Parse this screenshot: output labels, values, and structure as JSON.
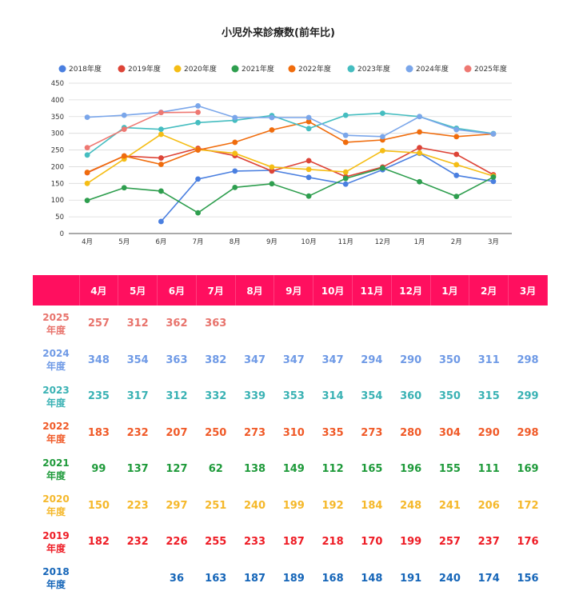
{
  "chart_data": {
    "type": "line",
    "title": "小児外来診療数(前年比)",
    "categories": [
      "4月",
      "5月",
      "6月",
      "7月",
      "8月",
      "9月",
      "10月",
      "11月",
      "12月",
      "1月",
      "2月",
      "3月"
    ],
    "ylim": [
      0,
      450
    ],
    "yticks": [
      "0",
      "50",
      "100",
      "150",
      "200",
      "250",
      "300",
      "350",
      "400",
      "450"
    ],
    "grid": true,
    "legend_position": "top",
    "series": [
      {
        "name": "2018年度",
        "color": "#4a7fe0",
        "values": [
          null,
          null,
          36,
          163,
          187,
          189,
          168,
          148,
          191,
          240,
          174,
          156
        ]
      },
      {
        "name": "2019年度",
        "color": "#dd4437",
        "values": [
          182,
          232,
          226,
          255,
          233,
          187,
          218,
          170,
          199,
          257,
          237,
          176
        ]
      },
      {
        "name": "2020年度",
        "color": "#f5bd15",
        "values": [
          150,
          223,
          297,
          251,
          240,
          199,
          192,
          184,
          248,
          241,
          206,
          172
        ]
      },
      {
        "name": "2021年度",
        "color": "#2e9e4e",
        "values": [
          99,
          137,
          127,
          62,
          138,
          149,
          112,
          165,
          196,
          155,
          111,
          169
        ]
      },
      {
        "name": "2022年度",
        "color": "#f06c0c",
        "values": [
          183,
          232,
          207,
          250,
          273,
          310,
          335,
          273,
          280,
          304,
          290,
          298
        ]
      },
      {
        "name": "2023年度",
        "color": "#45bdc0",
        "values": [
          235,
          317,
          312,
          332,
          339,
          353,
          314,
          354,
          360,
          350,
          315,
          299
        ]
      },
      {
        "name": "2024年度",
        "color": "#7aa6ea",
        "values": [
          348,
          354,
          363,
          382,
          347,
          347,
          347,
          294,
          290,
          350,
          311,
          298
        ]
      },
      {
        "name": "2025年度",
        "color": "#ee7872",
        "values": [
          257,
          312,
          362,
          363,
          null,
          null,
          null,
          null,
          null,
          null,
          null,
          null
        ]
      }
    ]
  },
  "table": {
    "headers": [
      "4月",
      "5月",
      "6月",
      "7月",
      "8月",
      "9月",
      "10月",
      "11月",
      "12月",
      "1月",
      "2月",
      "3月"
    ],
    "rows": [
      {
        "label_year": "2025",
        "label_suffix": "年度",
        "label_color": "#e8736c",
        "color": "#e8736c",
        "values": [
          "257",
          "312",
          "362",
          "363",
          "",
          "",
          "",
          "",
          "",
          "",
          "",
          ""
        ]
      },
      {
        "label_year": "2024",
        "label_suffix": "年度",
        "label_color": "#6f9ae6",
        "color": "#6f9ae6",
        "values": [
          "348",
          "354",
          "363",
          "382",
          "347",
          "347",
          "347",
          "294",
          "290",
          "350",
          "311",
          "298"
        ]
      },
      {
        "label_year": "2023",
        "label_suffix": "年度",
        "label_color": "#3ab2b4",
        "color": "#3ab2b4",
        "values": [
          "235",
          "317",
          "312",
          "332",
          "339",
          "353",
          "314",
          "354",
          "360",
          "350",
          "315",
          "299"
        ]
      },
      {
        "label_year": "2022",
        "label_suffix": "年度",
        "label_color": "#f05a28",
        "color": "#f05a28",
        "values": [
          "183",
          "232",
          "207",
          "250",
          "273",
          "310",
          "335",
          "273",
          "280",
          "304",
          "290",
          "298"
        ]
      },
      {
        "label_year": "2021",
        "label_suffix": "年度",
        "label_color": "#1e9a3a",
        "color": "#1e9a3a",
        "values": [
          "99",
          "137",
          "127",
          "62",
          "138",
          "149",
          "112",
          "165",
          "196",
          "155",
          "111",
          "169"
        ]
      },
      {
        "label_year": "2020",
        "label_suffix": "年度",
        "label_color": "#f5b82a",
        "color": "#f5b82a",
        "values": [
          "150",
          "223",
          "297",
          "251",
          "240",
          "199",
          "192",
          "184",
          "248",
          "241",
          "206",
          "172"
        ]
      },
      {
        "label_year": "2019",
        "label_suffix": "年度",
        "label_color": "#ee1c25",
        "color": "#ee1c25",
        "values": [
          "182",
          "232",
          "226",
          "255",
          "233",
          "187",
          "218",
          "170",
          "199",
          "257",
          "237",
          "176"
        ]
      },
      {
        "label_year": "2018",
        "label_suffix": "年度",
        "label_color": "#1565b8",
        "color": "#1565b8",
        "values": [
          "",
          "",
          "36",
          "163",
          "187",
          "189",
          "168",
          "148",
          "191",
          "240",
          "174",
          "156"
        ]
      }
    ]
  }
}
